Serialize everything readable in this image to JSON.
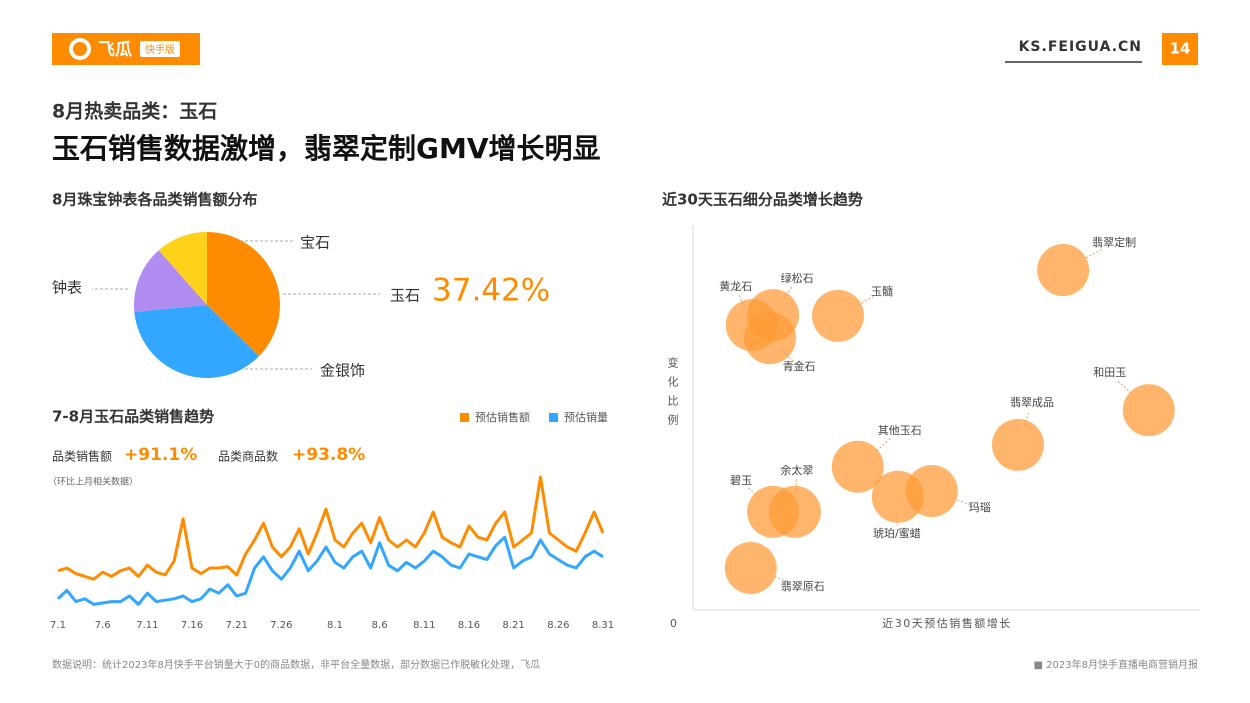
{
  "header": {
    "logo_text": "飞瓜",
    "badge": "快手版",
    "site": "KS.FEIGUA.CN",
    "page": "14"
  },
  "subtitle": "8月热卖品类：玉石",
  "title": "玉石销售数据激增，翡翠定制GMV增长明显",
  "stats": [
    {
      "label": "品类销售额",
      "value": "+91.1%"
    },
    {
      "label": "品类商品数",
      "value": "+93.8%"
    }
  ],
  "stats_note": "（环比上月相关数据）",
  "footer": {
    "note": "数据说明：统计2023年8月快手平台销量大于0的商品数据，非平台全量数据，部分数据已作脱敏化处理，飞瓜",
    "source": "■ 2023年8月快手直播电商营销月报"
  },
  "chart_data": [
    {
      "type": "pie",
      "title": "8月珠宝钟表各品类销售额分布",
      "categories": [
        "玉石",
        "金银饰",
        "钟表",
        "宝石"
      ],
      "values": [
        37.42,
        36.08,
        15,
        11.5
      ],
      "value_labels": [
        "37.42%",
        null,
        null,
        null
      ],
      "colors": [
        "#ff8c00",
        "#33a6ff",
        "#b08cf0",
        "#ffd11a"
      ]
    },
    {
      "type": "line",
      "title": "7-8月玉石品类销售趋势",
      "categories": [
        "7.1",
        null,
        null,
        null,
        null,
        "7.6",
        null,
        null,
        null,
        null,
        "7.11",
        null,
        null,
        null,
        null,
        "7.16",
        null,
        null,
        null,
        null,
        "7.21",
        null,
        null,
        null,
        null,
        "7.26",
        null,
        null,
        null,
        null,
        null,
        "8.1",
        null,
        null,
        null,
        null,
        "8.6",
        null,
        null,
        null,
        null,
        "8.11",
        null,
        null,
        null,
        null,
        "8.16",
        null,
        null,
        null,
        null,
        "8.21",
        null,
        null,
        null,
        null,
        "8.26",
        null,
        null,
        null,
        null,
        "8.31"
      ],
      "ylim": [
        0,
        100
      ],
      "legend": "top-right",
      "series": [
        {
          "name": "预估销售额",
          "color": "#ff8c00",
          "values": [
            28,
            30,
            26,
            24,
            22,
            27,
            24,
            28,
            30,
            24,
            32,
            27,
            25,
            35,
            65,
            30,
            26,
            30,
            30,
            31,
            25,
            40,
            50,
            62,
            45,
            38,
            45,
            58,
            40,
            55,
            72,
            50,
            45,
            55,
            62,
            48,
            66,
            50,
            45,
            50,
            45,
            55,
            70,
            52,
            48,
            45,
            60,
            52,
            50,
            62,
            70,
            45,
            50,
            55,
            95,
            55,
            50,
            45,
            42,
            55,
            70,
            55
          ]
        },
        {
          "name": "预估销量",
          "color": "#33a6ff",
          "values": [
            8,
            14,
            6,
            8,
            4,
            5,
            6,
            6,
            10,
            4,
            12,
            6,
            7,
            8,
            10,
            6,
            8,
            15,
            12,
            18,
            10,
            12,
            30,
            38,
            28,
            22,
            30,
            42,
            28,
            35,
            45,
            34,
            30,
            38,
            42,
            30,
            48,
            32,
            28,
            34,
            30,
            35,
            42,
            38,
            32,
            30,
            40,
            38,
            36,
            46,
            52,
            30,
            35,
            38,
            50,
            40,
            36,
            32,
            30,
            38,
            42,
            38
          ]
        }
      ]
    },
    {
      "type": "scatter",
      "title": "近30天玉石细分品类增长趋势",
      "x_label": "近30天预估销售额增长",
      "y_label": "变化比例",
      "origin_label": "0",
      "xlim": [
        0,
        100
      ],
      "ylim": [
        0,
        100
      ],
      "color": "#ff9a33",
      "labels": [
        "黄龙石",
        "绿松石",
        "青金石",
        "玉髓",
        "翡翠定制",
        "和田玉",
        "翡翠成品",
        "其他玉石",
        "琥珀/蜜蜡",
        "玛瑙",
        "碧玉",
        "余太翠",
        "翡翠原石"
      ],
      "x": [
        11.6,
        15.8,
        15.2,
        28.6,
        73.0,
        89.9,
        64.1,
        32.5,
        40.4,
        47.1,
        15.8,
        20.1,
        11.4
      ],
      "y": [
        74.0,
        76.6,
        70.6,
        76.4,
        88.3,
        51.9,
        42.9,
        37.2,
        29.4,
        30.9,
        25.5,
        25.5,
        10.9
      ]
    }
  ]
}
